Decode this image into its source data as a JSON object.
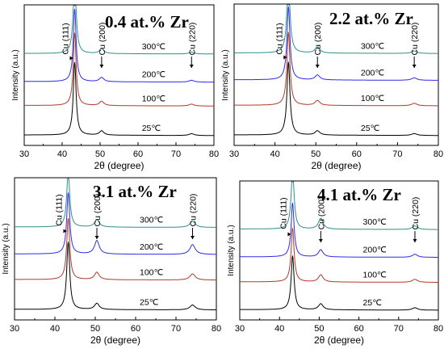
{
  "chart_data": [
    {
      "type": "line",
      "title": "0.4 at.% Zr",
      "xlabel": "2θ (degree)",
      "ylabel": "Intensity (a.u.)",
      "xlim": [
        30,
        80
      ],
      "x_ticks": [
        30,
        40,
        50,
        60,
        70,
        80
      ],
      "peak_labels": [
        {
          "text": "Cu (111)",
          "x": 43.3
        },
        {
          "text": "Cu (200)",
          "x": 50.4
        },
        {
          "text": "Cu (220)",
          "x": 74.1
        }
      ],
      "peak_heights": {
        "25℃": [
          6.0,
          0.35,
          0.15
        ],
        "100℃": [
          6.0,
          0.35,
          0.15
        ],
        "200℃": [
          6.0,
          0.35,
          0.15
        ],
        "300℃": [
          6.5,
          0.4,
          0.15
        ]
      },
      "series": [
        {
          "name": "25℃",
          "color": "#000000"
        },
        {
          "name": "100℃",
          "color": "#b23a2a"
        },
        {
          "name": "200℃",
          "color": "#2d2de6"
        },
        {
          "name": "300℃",
          "color": "#2f8f8f"
        }
      ]
    },
    {
      "type": "line",
      "title": "2.2 at.% Zr",
      "xlabel": "2θ (degree)",
      "ylabel": "Intensity (a.u.)",
      "xlim": [
        30,
        80
      ],
      "x_ticks": [
        30,
        40,
        50,
        60,
        70,
        80
      ],
      "peak_labels": [
        {
          "text": "Cu (111)",
          "x": 43.3
        },
        {
          "text": "Cu (200)",
          "x": 50.4
        },
        {
          "text": "Cu (220)",
          "x": 74.1
        }
      ],
      "peak_heights": {
        "25℃": [
          6.0,
          0.35,
          0.15
        ],
        "100℃": [
          6.0,
          0.4,
          0.2
        ],
        "200℃": [
          6.0,
          0.4,
          0.2
        ],
        "300℃": [
          6.2,
          0.5,
          0.2
        ]
      },
      "series": [
        {
          "name": "25℃",
          "color": "#000000"
        },
        {
          "name": "100℃",
          "color": "#b23a2a"
        },
        {
          "name": "200℃",
          "color": "#2d2de6"
        },
        {
          "name": "300℃",
          "color": "#2f8f8f"
        }
      ]
    },
    {
      "type": "line",
      "title": "3.1 at.% Zr",
      "xlabel": "2θ (degree)",
      "ylabel": "Intensity (a.u.)",
      "xlim": [
        30,
        80
      ],
      "x_ticks": [
        30,
        40,
        50,
        60,
        70,
        80
      ],
      "peak_labels": [
        {
          "text": "Cu (111)",
          "x": 43.3
        },
        {
          "text": "Cu (200)",
          "x": 50.4
        },
        {
          "text": "Cu (220)",
          "x": 74.1
        }
      ],
      "peak_heights": {
        "25℃": [
          5.5,
          0.5,
          0.4
        ],
        "100℃": [
          5.0,
          0.6,
          0.5
        ],
        "200℃": [
          5.0,
          1.1,
          0.8
        ],
        "300℃": [
          4.5,
          0.6,
          0.5
        ]
      },
      "series": [
        {
          "name": "25℃",
          "color": "#000000"
        },
        {
          "name": "100℃",
          "color": "#b23a2a"
        },
        {
          "name": "200℃",
          "color": "#2d2de6"
        },
        {
          "name": "300℃",
          "color": "#2f8f8f"
        }
      ]
    },
    {
      "type": "line",
      "title": "4.1 at.% Zr",
      "xlabel": "2θ (degree)",
      "ylabel": "Intensity (a.u.)",
      "xlim": [
        30,
        80
      ],
      "x_ticks": [
        30,
        40,
        50,
        60,
        70,
        80
      ],
      "peak_labels": [
        {
          "text": "Cu (111)",
          "x": 43.3
        },
        {
          "text": "Cu (200)",
          "x": 50.4
        },
        {
          "text": "Cu (220)",
          "x": 74.1
        }
      ],
      "peak_heights": {
        "25℃": [
          4.5,
          0.5,
          0.2
        ],
        "100℃": [
          4.5,
          0.6,
          0.25
        ],
        "200℃": [
          4.5,
          0.6,
          0.25
        ],
        "300℃": [
          5.0,
          0.9,
          0.3
        ]
      },
      "series": [
        {
          "name": "25℃",
          "color": "#000000"
        },
        {
          "name": "100℃",
          "color": "#b23a2a"
        },
        {
          "name": "200℃",
          "color": "#2d2de6"
        },
        {
          "name": "300℃",
          "color": "#2f8f8f"
        }
      ]
    }
  ]
}
